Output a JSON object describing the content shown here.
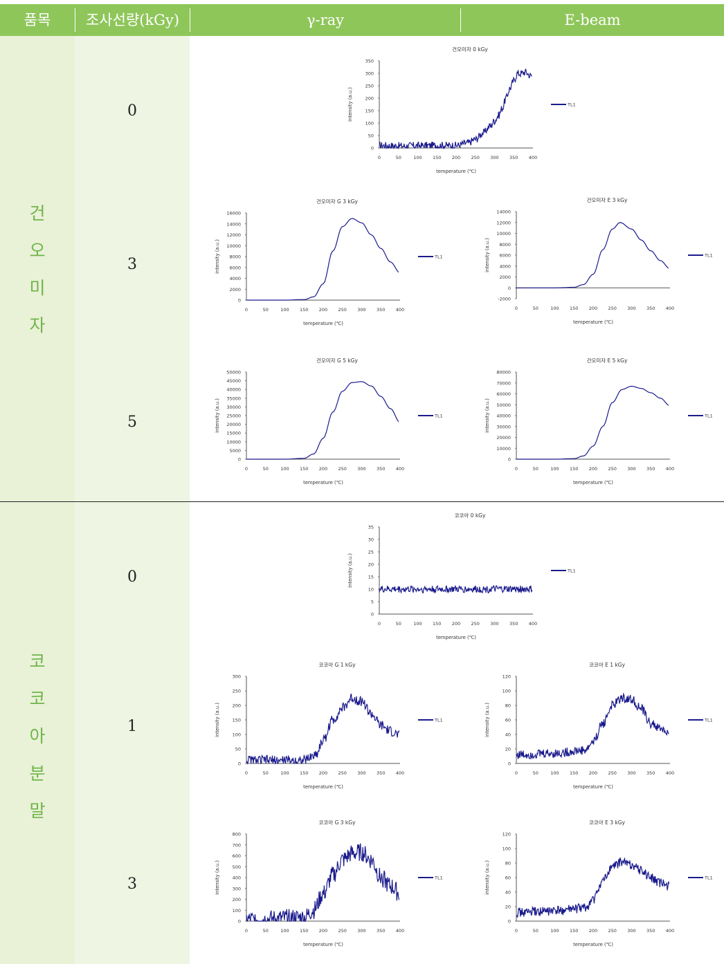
{
  "header": {
    "col_item": "품목",
    "col_dose": "조사선량(kGy)",
    "col_gamma": "γ-ray",
    "col_ebeam": "E-beam"
  },
  "groups": [
    {
      "name": "건오미자",
      "chars": [
        "건",
        "오",
        "미",
        "자"
      ],
      "doses": [
        "0",
        "3",
        "5"
      ]
    },
    {
      "name": "코코아분말",
      "chars": [
        "코",
        "코",
        "아",
        "분",
        "말"
      ],
      "doses": [
        "0",
        "1",
        "3"
      ]
    }
  ],
  "colors": {
    "header_bg": "#8ec65a",
    "label_text": "#6fb54a",
    "band": "#e9f1d7",
    "series": "#1a1a8c"
  },
  "chart_data": [
    {
      "id": "c1",
      "type": "line",
      "title": "건오미자 0 kGy",
      "xlabel": "temperature (℃)",
      "ylabel": "intensity (a.u.)",
      "xlim": [
        0,
        400
      ],
      "ylim": [
        0,
        350
      ],
      "yticks": [
        0,
        50,
        100,
        150,
        200,
        250,
        300,
        350
      ],
      "xticks": [
        0,
        50,
        100,
        150,
        200,
        250,
        300,
        350,
        400
      ],
      "series": [
        {
          "name": "TL1",
          "x": [
            0,
            50,
            100,
            150,
            200,
            230,
            250,
            270,
            290,
            300,
            310,
            320,
            330,
            340,
            350,
            360,
            370,
            380,
            395
          ],
          "y": [
            10,
            8,
            9,
            10,
            10,
            20,
            35,
            60,
            90,
            110,
            130,
            160,
            200,
            240,
            270,
            300,
            300,
            305,
            290
          ],
          "noise": 15
        }
      ]
    },
    {
      "id": "c2",
      "type": "line",
      "title": "건오미자 G 3 kGy",
      "xlabel": "temperature (℃)",
      "ylabel": "intensity (a.u.)",
      "xlim": [
        0,
        400
      ],
      "ylim": [
        0,
        16000
      ],
      "yticks": [
        0,
        2000,
        4000,
        6000,
        8000,
        10000,
        12000,
        14000,
        16000
      ],
      "xticks": [
        0,
        50,
        100,
        150,
        200,
        250,
        300,
        350,
        400
      ],
      "series": [
        {
          "name": "TL1",
          "x": [
            0,
            100,
            150,
            175,
            200,
            225,
            250,
            275,
            300,
            325,
            350,
            375,
            400
          ],
          "y": [
            0,
            0,
            100,
            600,
            3000,
            9000,
            13500,
            15000,
            14200,
            12000,
            9500,
            7000,
            5000
          ]
        }
      ]
    },
    {
      "id": "c3",
      "type": "line",
      "title": "건오미자 E 3 kGy",
      "xlabel": "temperature (℃)",
      "ylabel": "intensity (a.u.)",
      "xlim": [
        0,
        400
      ],
      "ylim": [
        -2000,
        14000
      ],
      "yticks": [
        -2000,
        0,
        2000,
        4000,
        6000,
        8000,
        10000,
        12000,
        14000
      ],
      "xticks": [
        0,
        50,
        100,
        150,
        200,
        250,
        300,
        350,
        400
      ],
      "series": [
        {
          "name": "TL1",
          "x": [
            0,
            100,
            150,
            175,
            200,
            225,
            250,
            270,
            300,
            325,
            350,
            375,
            400
          ],
          "y": [
            0,
            0,
            100,
            600,
            2500,
            7000,
            10800,
            12000,
            10800,
            8800,
            6800,
            5000,
            3500
          ]
        }
      ]
    },
    {
      "id": "c4",
      "type": "line",
      "title": "건오미자 G 5 kGy",
      "xlabel": "temperature (℃)",
      "ylabel": "intensity (a.u.)",
      "xlim": [
        0,
        400
      ],
      "ylim": [
        0,
        50000
      ],
      "yticks": [
        0,
        5000,
        10000,
        15000,
        20000,
        25000,
        30000,
        35000,
        40000,
        45000,
        50000
      ],
      "xticks": [
        0,
        50,
        100,
        150,
        200,
        250,
        300,
        350,
        400
      ],
      "series": [
        {
          "name": "TL1",
          "x": [
            0,
            100,
            150,
            175,
            200,
            225,
            250,
            275,
            300,
            325,
            350,
            375,
            400
          ],
          "y": [
            0,
            0,
            500,
            3000,
            12000,
            27000,
            39000,
            44000,
            44500,
            42000,
            36000,
            29000,
            21000
          ]
        }
      ]
    },
    {
      "id": "c5",
      "type": "line",
      "title": "건오미자 E 5 kGy",
      "xlabel": "temperature (℃)",
      "ylabel": "intensity (a.u.)",
      "xlim": [
        0,
        400
      ],
      "ylim": [
        0,
        80000
      ],
      "yticks": [
        0,
        10000,
        20000,
        30000,
        40000,
        50000,
        60000,
        70000,
        80000
      ],
      "xticks": [
        0,
        50,
        100,
        150,
        200,
        250,
        300,
        350,
        400
      ],
      "series": [
        {
          "name": "TL1",
          "x": [
            0,
            100,
            150,
            175,
            200,
            225,
            250,
            275,
            300,
            325,
            350,
            375,
            400
          ],
          "y": [
            0,
            0,
            500,
            3000,
            12000,
            30000,
            52000,
            64000,
            67000,
            65000,
            61000,
            56000,
            49000
          ]
        }
      ]
    },
    {
      "id": "c6",
      "type": "line",
      "title": "코코아 0 kGy",
      "xlabel": "temperature (℃)",
      "ylabel": "intensity (a.u.)",
      "xlim": [
        0,
        400
      ],
      "ylim": [
        0,
        35
      ],
      "yticks": [
        0,
        5,
        10,
        15,
        20,
        25,
        30,
        35
      ],
      "xticks": [
        0,
        50,
        100,
        150,
        200,
        250,
        300,
        350,
        400
      ],
      "series": [
        {
          "name": "TL1",
          "x": [
            0,
            400
          ],
          "y": [
            10,
            10
          ],
          "noise": 14
        }
      ]
    },
    {
      "id": "c7",
      "type": "line",
      "title": "코코아 G 1 kGy",
      "xlabel": "temperature (℃)",
      "ylabel": "intensity (a.u.)",
      "xlim": [
        0,
        400
      ],
      "ylim": [
        0,
        300
      ],
      "yticks": [
        0,
        50,
        100,
        150,
        200,
        250,
        300
      ],
      "xticks": [
        0,
        50,
        100,
        150,
        200,
        250,
        300,
        350,
        400
      ],
      "series": [
        {
          "name": "TL1",
          "x": [
            0,
            150,
            180,
            200,
            225,
            250,
            275,
            300,
            325,
            350,
            375,
            400
          ],
          "y": [
            10,
            10,
            30,
            80,
            150,
            190,
            225,
            215,
            170,
            130,
            110,
            95
          ],
          "noise": 20
        }
      ]
    },
    {
      "id": "c8",
      "type": "line",
      "title": "코코아 E 1 kGy",
      "xlabel": "temperature (℃)",
      "ylabel": "intensity (a.u.)",
      "xlim": [
        0,
        400
      ],
      "ylim": [
        0,
        120
      ],
      "yticks": [
        0,
        20,
        40,
        60,
        80,
        100,
        120
      ],
      "xticks": [
        0,
        50,
        100,
        150,
        200,
        250,
        300,
        350,
        400
      ],
      "series": [
        {
          "name": "TL1",
          "x": [
            0,
            100,
            180,
            200,
            225,
            250,
            275,
            300,
            325,
            350,
            375,
            400
          ],
          "y": [
            12,
            14,
            18,
            30,
            55,
            80,
            90,
            88,
            75,
            55,
            48,
            40
          ],
          "noise": 18
        }
      ]
    },
    {
      "id": "c9",
      "type": "line",
      "title": "코코아 G 3 kGy",
      "xlabel": "temperature (℃)",
      "ylabel": "intensity (a.u.)",
      "xlim": [
        0,
        400
      ],
      "ylim": [
        0,
        800
      ],
      "yticks": [
        0,
        100,
        200,
        300,
        400,
        500,
        600,
        700,
        800
      ],
      "xticks": [
        0,
        50,
        100,
        150,
        200,
        250,
        300,
        350,
        400
      ],
      "series": [
        {
          "name": "TL1",
          "x": [
            0,
            150,
            175,
            200,
            225,
            250,
            275,
            300,
            325,
            350,
            375,
            400
          ],
          "y": [
            10,
            30,
            100,
            250,
            420,
            560,
            620,
            630,
            560,
            400,
            320,
            250
          ],
          "noise": 35
        }
      ]
    },
    {
      "id": "c10",
      "type": "line",
      "title": "코코아 E 3 kGy",
      "xlabel": "temperature (℃)",
      "ylabel": "intensity (a.u.)",
      "xlim": [
        0,
        400
      ],
      "ylim": [
        0,
        120
      ],
      "yticks": [
        0,
        20,
        40,
        60,
        80,
        100,
        120
      ],
      "xticks": [
        0,
        50,
        100,
        150,
        200,
        250,
        300,
        350,
        400
      ],
      "series": [
        {
          "name": "TL1",
          "x": [
            0,
            100,
            180,
            200,
            225,
            250,
            275,
            300,
            325,
            350,
            375,
            400
          ],
          "y": [
            12,
            14,
            18,
            30,
            55,
            75,
            82,
            78,
            70,
            60,
            52,
            48
          ],
          "noise": 18
        }
      ]
    }
  ]
}
